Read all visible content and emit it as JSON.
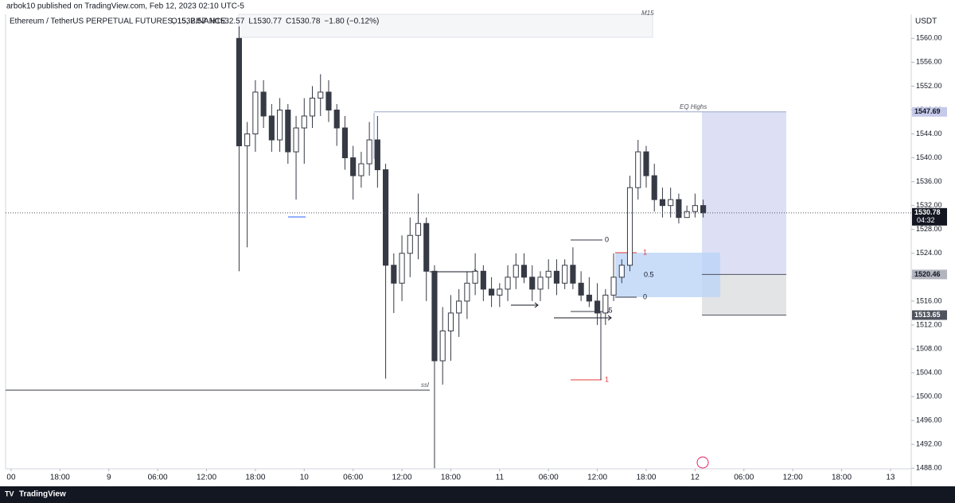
{
  "top_bar": {
    "text": "arbok10 published on TradingView.com, Feb 12, 2023 02:10 UTC-5"
  },
  "footer": {
    "brand": "TradingView"
  },
  "chart_data": {
    "type": "candlestick",
    "symbol": "Ethereum / TetherUS PERPETUAL FUTURES, 15, BINANCE",
    "ohlc_header": [
      "O1532.57",
      "H1532.57",
      "L1530.77",
      "C1530.78",
      "−1.80 (−0.12%)"
    ],
    "currency": "USDT",
    "countdown": "04:32",
    "up_color": "#ffffff",
    "down_color": "#363a45",
    "x": [
      28,
      29,
      30,
      31,
      32,
      33,
      34,
      35,
      36,
      37,
      38,
      39,
      40,
      41,
      42,
      43,
      44,
      45,
      46,
      47,
      48,
      49,
      50,
      51,
      52,
      53,
      54,
      55,
      56,
      57,
      58,
      59,
      60,
      61,
      62,
      63,
      64,
      65,
      66,
      67,
      68,
      69,
      70,
      71,
      72,
      73,
      74,
      75,
      76,
      77,
      78,
      79,
      80,
      81,
      82,
      83,
      84,
      85
    ],
    "open": [
      1560,
      1542,
      1544,
      1551,
      1547,
      1543,
      1548,
      1541,
      1545,
      1547,
      1550,
      1551,
      1548,
      1545,
      1540,
      1537,
      1539,
      1543,
      1538,
      1522,
      1519,
      1524,
      1527,
      1529,
      1521,
      1506,
      1511,
      1514,
      1516,
      1519,
      1521,
      1518,
      1517,
      1518,
      1520,
      1522,
      1520,
      1518,
      1520,
      1521,
      1519,
      1522,
      1519,
      1517,
      1516,
      1514,
      1517,
      1520,
      1522,
      1535,
      1541,
      1537,
      1533,
      1532,
      1533,
      1530,
      1531,
      1532
    ],
    "high": [
      1562,
      1546,
      1553,
      1553,
      1549,
      1550,
      1549,
      1547,
      1550,
      1552,
      1554,
      1553,
      1549,
      1547,
      1542,
      1541,
      1546,
      1547,
      1539,
      1524,
      1527,
      1530,
      1534,
      1530,
      1522,
      1515,
      1517,
      1518,
      1521,
      1524,
      1522,
      1520,
      1519,
      1522,
      1524,
      1524,
      1522,
      1521,
      1523,
      1523,
      1523,
      1525,
      1521,
      1520,
      1519,
      1518,
      1524,
      1523,
      1537,
      1543,
      1542,
      1539,
      1535,
      1535,
      1534,
      1532,
      1534,
      1533
    ],
    "low": [
      1521,
      1525,
      1541,
      1545,
      1541,
      1541,
      1539,
      1533,
      1539,
      1545,
      1547,
      1546,
      1542,
      1538,
      1533,
      1535,
      1537,
      1535,
      1503,
      1514,
      1516,
      1520,
      1523,
      1516,
      1488,
      1502,
      1506,
      1510,
      1513,
      1517,
      1516,
      1515,
      1515,
      1516,
      1518,
      1519,
      1516,
      1516,
      1518,
      1517,
      1518,
      1518,
      1516,
      1515,
      1512,
      1512,
      1516,
      1519,
      1521,
      1533,
      1535,
      1531,
      1530,
      1530,
      1529,
      1530,
      1530,
      1530
    ],
    "close": [
      1542,
      1544,
      1551,
      1547,
      1543,
      1548,
      1541,
      1545,
      1547,
      1550,
      1551,
      1548,
      1545,
      1540,
      1537,
      1539,
      1543,
      1538,
      1522,
      1519,
      1524,
      1527,
      1529,
      1521,
      1506,
      1511,
      1514,
      1516,
      1519,
      1521,
      1518,
      1517,
      1518,
      1520,
      1522,
      1520,
      1518,
      1520,
      1521,
      1519,
      1522,
      1519,
      1517,
      1516,
      1514,
      1517,
      1520,
      1522,
      1535,
      1541,
      1537,
      1533,
      1532,
      1533,
      1530,
      1531,
      1532,
      1530.78
    ],
    "xlim": [
      -0.68,
      110.55
    ],
    "xticks": [
      {
        "value": 0,
        "label": "00"
      },
      {
        "value": 6,
        "label": "18:00"
      },
      {
        "value": 12,
        "label": "9"
      },
      {
        "value": 18,
        "label": "06:00"
      },
      {
        "value": 24,
        "label": "12:00"
      },
      {
        "value": 30,
        "label": "18:00"
      },
      {
        "value": 36,
        "label": "10"
      },
      {
        "value": 42,
        "label": "06:00"
      },
      {
        "value": 48,
        "label": "12:00"
      },
      {
        "value": 54,
        "label": "18:00"
      },
      {
        "value": 60,
        "label": "11"
      },
      {
        "value": 66,
        "label": "06:00"
      },
      {
        "value": 72,
        "label": "12:00"
      },
      {
        "value": 78,
        "label": "18:00"
      },
      {
        "value": 84,
        "label": "12"
      },
      {
        "value": 90,
        "label": "06:00"
      },
      {
        "value": 96,
        "label": "12:00"
      },
      {
        "value": 102,
        "label": "18:00"
      },
      {
        "value": 108,
        "label": "13"
      }
    ],
    "ylim": [
      1487.9,
      1565.1
    ],
    "yticks": [
      {
        "value": 1560,
        "label": "1560.00"
      },
      {
        "value": 1556,
        "label": "1556.00"
      },
      {
        "value": 1552,
        "label": "1552.00"
      },
      {
        "value": 1548,
        "label": "1548.00"
      },
      {
        "value": 1544,
        "label": "1544.00"
      },
      {
        "value": 1540,
        "label": "1540.00"
      },
      {
        "value": 1536,
        "label": "1536.00"
      },
      {
        "value": 1532,
        "label": "1532.00"
      },
      {
        "value": 1528,
        "label": "1528.00"
      },
      {
        "value": 1524,
        "label": "1524.00"
      },
      {
        "value": 1520,
        "label": "1520.00"
      },
      {
        "value": 1516,
        "label": "1516.00"
      },
      {
        "value": 1512,
        "label": "1512.00"
      },
      {
        "value": 1508,
        "label": "1508.00"
      },
      {
        "value": 1504,
        "label": "1504.00"
      },
      {
        "value": 1500,
        "label": "1500.00"
      },
      {
        "value": 1496,
        "label": "1496.00"
      },
      {
        "value": 1492,
        "label": "1492.00"
      },
      {
        "value": 1488,
        "label": "1488.00"
      }
    ],
    "price_labels": [
      {
        "value": 1547.69,
        "label": "1547.69"
      },
      {
        "value": 1530.78,
        "label": "1530.78"
      },
      {
        "value": 1520.46,
        "label": "1520.46"
      },
      {
        "value": 1513.65,
        "label": "1513.65"
      }
    ],
    "annotations": [
      "EQ Highs",
      "ssl",
      "M15"
    ],
    "fib_labels": [
      "0",
      "0.5",
      "1",
      "0",
      ".5",
      "1"
    ]
  }
}
